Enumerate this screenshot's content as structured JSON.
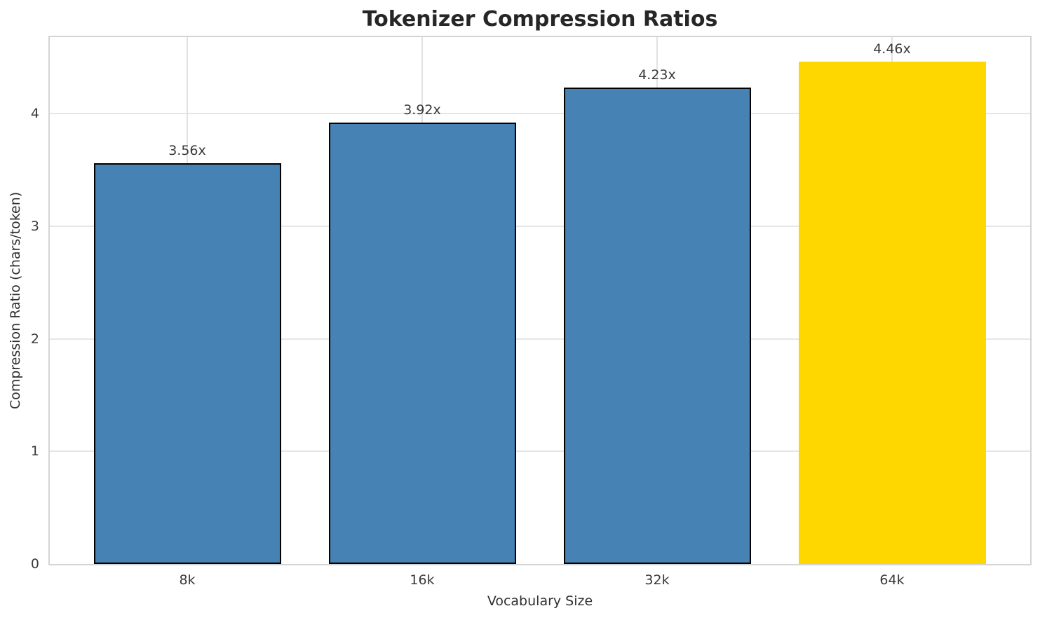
{
  "chart_data": {
    "type": "bar",
    "title": "Tokenizer Compression Ratios",
    "xlabel": "Vocabulary Size",
    "ylabel": "Compression Ratio (chars/token)",
    "categories": [
      "8k",
      "16k",
      "32k",
      "64k"
    ],
    "values": [
      3.56,
      3.92,
      4.23,
      4.46
    ],
    "bar_labels": [
      "3.56x",
      "3.92x",
      "4.23x",
      "4.46x"
    ],
    "bar_colors": [
      "#4682B4",
      "#4682B4",
      "#4682B4",
      "#FFD700"
    ],
    "bar_edge_colors": [
      "#000000",
      "#000000",
      "#000000",
      "none"
    ],
    "highlight_index": 3,
    "yticks": [
      0,
      1,
      2,
      3,
      4
    ],
    "ylim": [
      0,
      4.68
    ],
    "grid": true,
    "legend": "none",
    "accent_colors": {
      "bar_default": "#4682B4",
      "bar_highlight": "#FFD700",
      "bar_edge": "#000000",
      "spine": "#d4d4d4",
      "grid_h": "#e6e6e6",
      "grid_v": "#e2e2e2",
      "title_text": "#262626",
      "tick_text": "#3a3a3a"
    }
  }
}
